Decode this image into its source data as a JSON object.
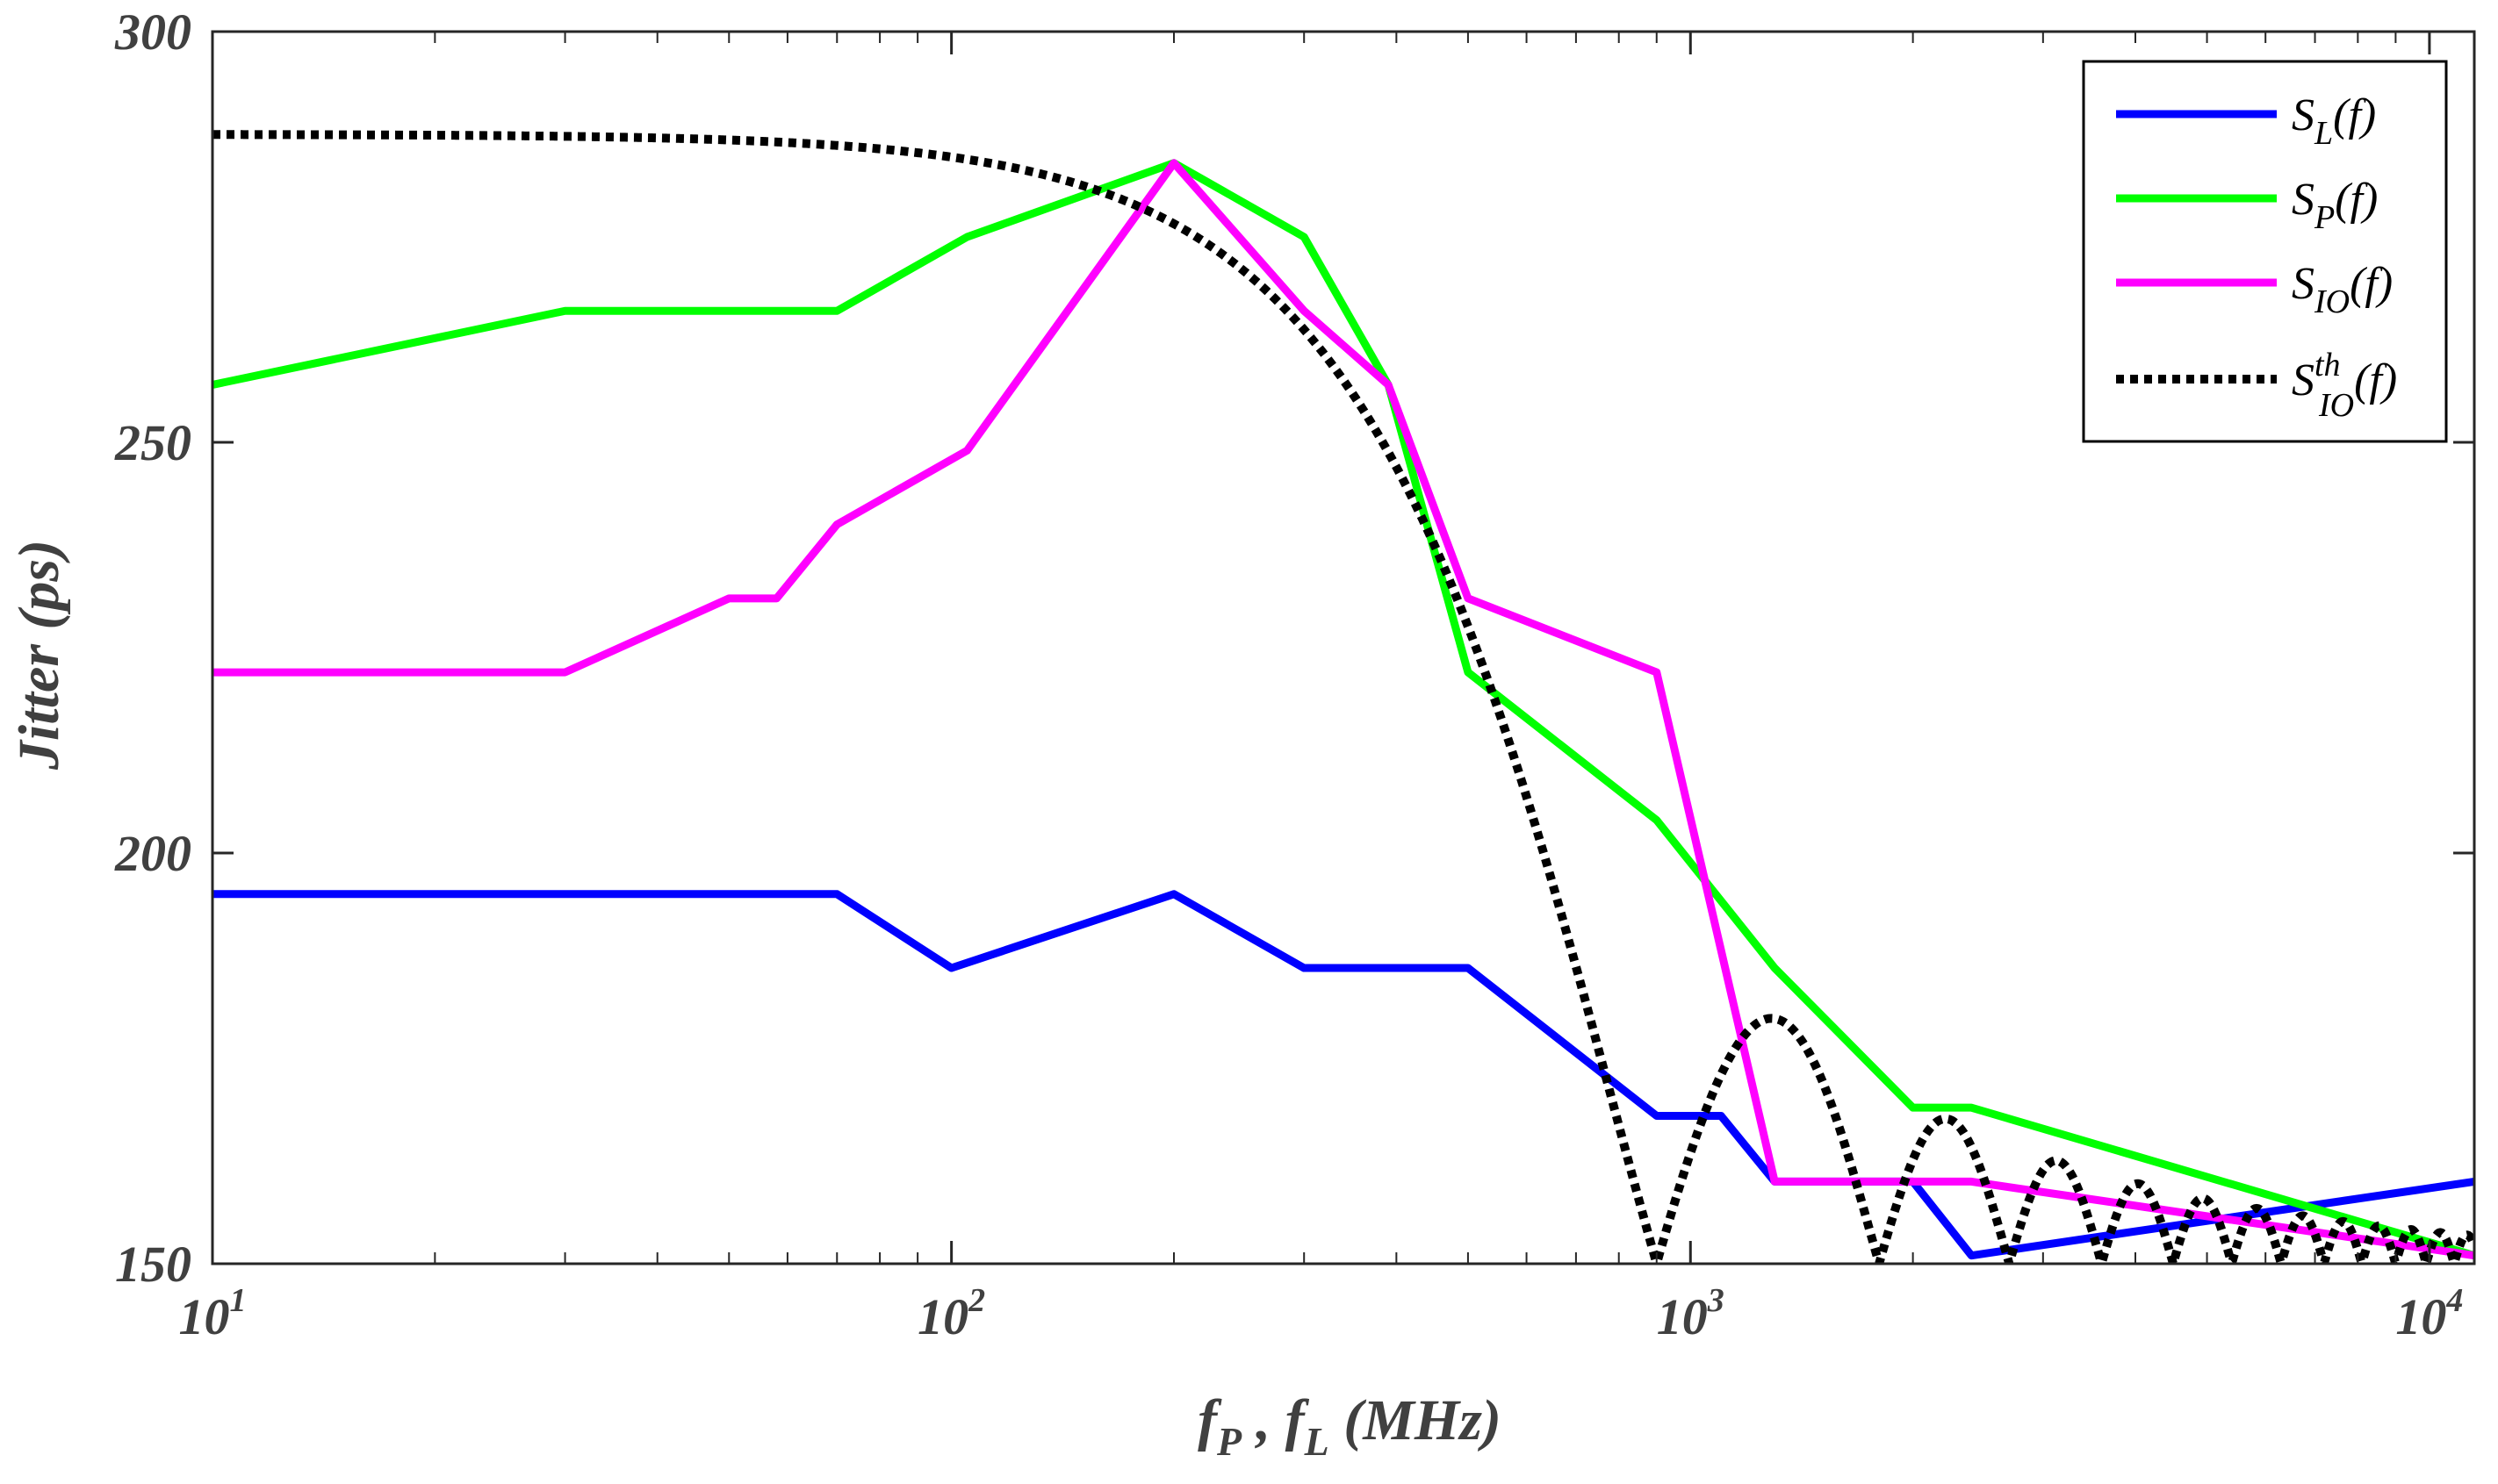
{
  "chart_data": {
    "type": "line",
    "title": "",
    "xlabel": {
      "f1": "f",
      "f1_sub": "P",
      "sep": " , ",
      "f2": "f",
      "f2_sub": "L",
      "unit": " (MHz)"
    },
    "ylabel": "Jitter (ps)",
    "xscale": "log",
    "xlim": [
      10,
      11500
    ],
    "ylim": [
      150,
      300
    ],
    "xticks": [
      {
        "base": "10",
        "exp": "1"
      },
      {
        "base": "10",
        "exp": "2"
      },
      {
        "base": "10",
        "exp": "3"
      },
      {
        "base": "10",
        "exp": "4"
      }
    ],
    "xtick_values": [
      10,
      100,
      1000,
      10000
    ],
    "yticks": [
      "150",
      "200",
      "250",
      "300"
    ],
    "ytick_values": [
      150,
      200,
      250,
      300
    ],
    "grid": false,
    "legend_position": "top-right",
    "series": [
      {
        "name": "S_L(f)",
        "label_main": "S",
        "label_sub": "L",
        "label_sup": "",
        "label_suffix": "(f)",
        "color": "#0000ff",
        "style": "solid",
        "x": [
          10,
          30,
          70,
          100,
          200,
          300,
          500,
          900,
          1100,
          1300,
          2000,
          2400,
          11500
        ],
        "y": [
          195,
          195,
          195,
          186,
          195,
          186,
          186,
          168,
          168,
          160,
          160,
          151,
          160
        ]
      },
      {
        "name": "S_P(f)",
        "label_main": "S",
        "label_sub": "P",
        "label_sup": "",
        "label_suffix": "(f)",
        "color": "#00ff00",
        "style": "solid",
        "x": [
          10,
          30,
          70,
          105,
          200,
          300,
          390,
          500,
          900,
          1300,
          2000,
          2400,
          11500
        ],
        "y": [
          257,
          266,
          266,
          275,
          284,
          275,
          257,
          222,
          204,
          186,
          169,
          169,
          151
        ]
      },
      {
        "name": "S_IO(f)",
        "label_main": "S",
        "label_sub": "IO",
        "label_sup": "",
        "label_suffix": "(f)",
        "color": "#ff00ff",
        "style": "solid",
        "x": [
          10,
          30,
          50,
          58,
          70,
          105,
          200,
          300,
          390,
          500,
          900,
          1300,
          2400,
          11500
        ],
        "y": [
          222,
          222,
          231,
          231,
          240,
          249,
          284,
          266,
          257,
          231,
          222,
          160,
          160,
          151
        ]
      },
      {
        "name": "S_IO^th(f)",
        "label_main": "S",
        "label_sub": "IO",
        "label_sup": "th",
        "label_suffix": "(f)",
        "color": "#000000",
        "style": "dotted",
        "model": {
          "form": "floor + amplitude * |sinc(x / first_zero)|",
          "floor": 150,
          "amplitude": 137.5,
          "first_zero": 900
        }
      }
    ]
  }
}
